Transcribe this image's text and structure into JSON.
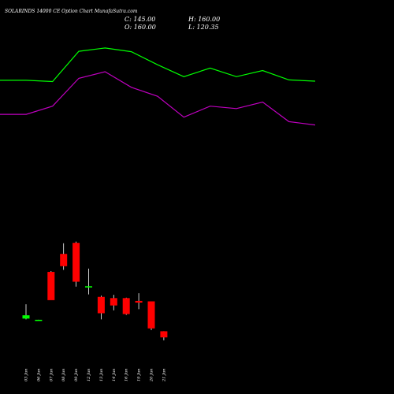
{
  "header": {
    "title": "SOLARINDS 14000  CE Option  Chart MunafaSutra.com",
    "close": "C: 145.00",
    "high": "H: 160.00",
    "open": "O: 160.00",
    "low": "L: 120.35"
  },
  "colors": {
    "background": "#000000",
    "bull": "#00ff00",
    "bear": "#ff0000",
    "upper_band": "#00ff00",
    "lower_band": "#c000c0",
    "text": "#ffffff"
  },
  "chart_data": {
    "type": "candlestick",
    "grid": false,
    "categories": [
      "03 Jun",
      "06 Jun",
      "07 Jun",
      "08 Jun",
      "09 Jun",
      "12 Jun",
      "13 Jun",
      "14 Jun",
      "16 Jun",
      "19 Jun",
      "20 Jun",
      "21 Jun"
    ],
    "ohlc": [
      {
        "o": 58,
        "h": 93,
        "l": 56,
        "c": 66
      },
      {
        "o": 55,
        "h": 55,
        "l": 53,
        "c": 55
      },
      {
        "o": 172,
        "h": 174,
        "l": 104,
        "c": 103
      },
      {
        "o": 216,
        "h": 242,
        "l": 177,
        "c": 186
      },
      {
        "o": 243,
        "h": 246,
        "l": 136,
        "c": 148
      },
      {
        "o": 134,
        "h": 180,
        "l": 117,
        "c": 137
      },
      {
        "o": 111,
        "h": 114,
        "l": 56,
        "c": 71
      },
      {
        "o": 108,
        "h": 116,
        "l": 78,
        "c": 90
      },
      {
        "o": 108,
        "h": 109,
        "l": 67,
        "c": 69
      },
      {
        "o": 101,
        "h": 120,
        "l": 81,
        "c": 97
      },
      {
        "o": 100,
        "h": 100,
        "l": 30,
        "c": 34
      },
      {
        "o": 27,
        "h": 27,
        "l": 5,
        "c": 12
      }
    ],
    "upper_band_line": [
      640,
      640,
      637,
      711,
      719,
      710,
      678,
      649,
      670,
      649,
      664,
      641,
      638
    ],
    "lower_band_line": [
      557,
      557,
      577,
      645,
      661,
      623,
      601,
      550,
      577,
      571,
      587,
      539,
      531
    ],
    "ylim": [
      -30,
      740
    ]
  }
}
